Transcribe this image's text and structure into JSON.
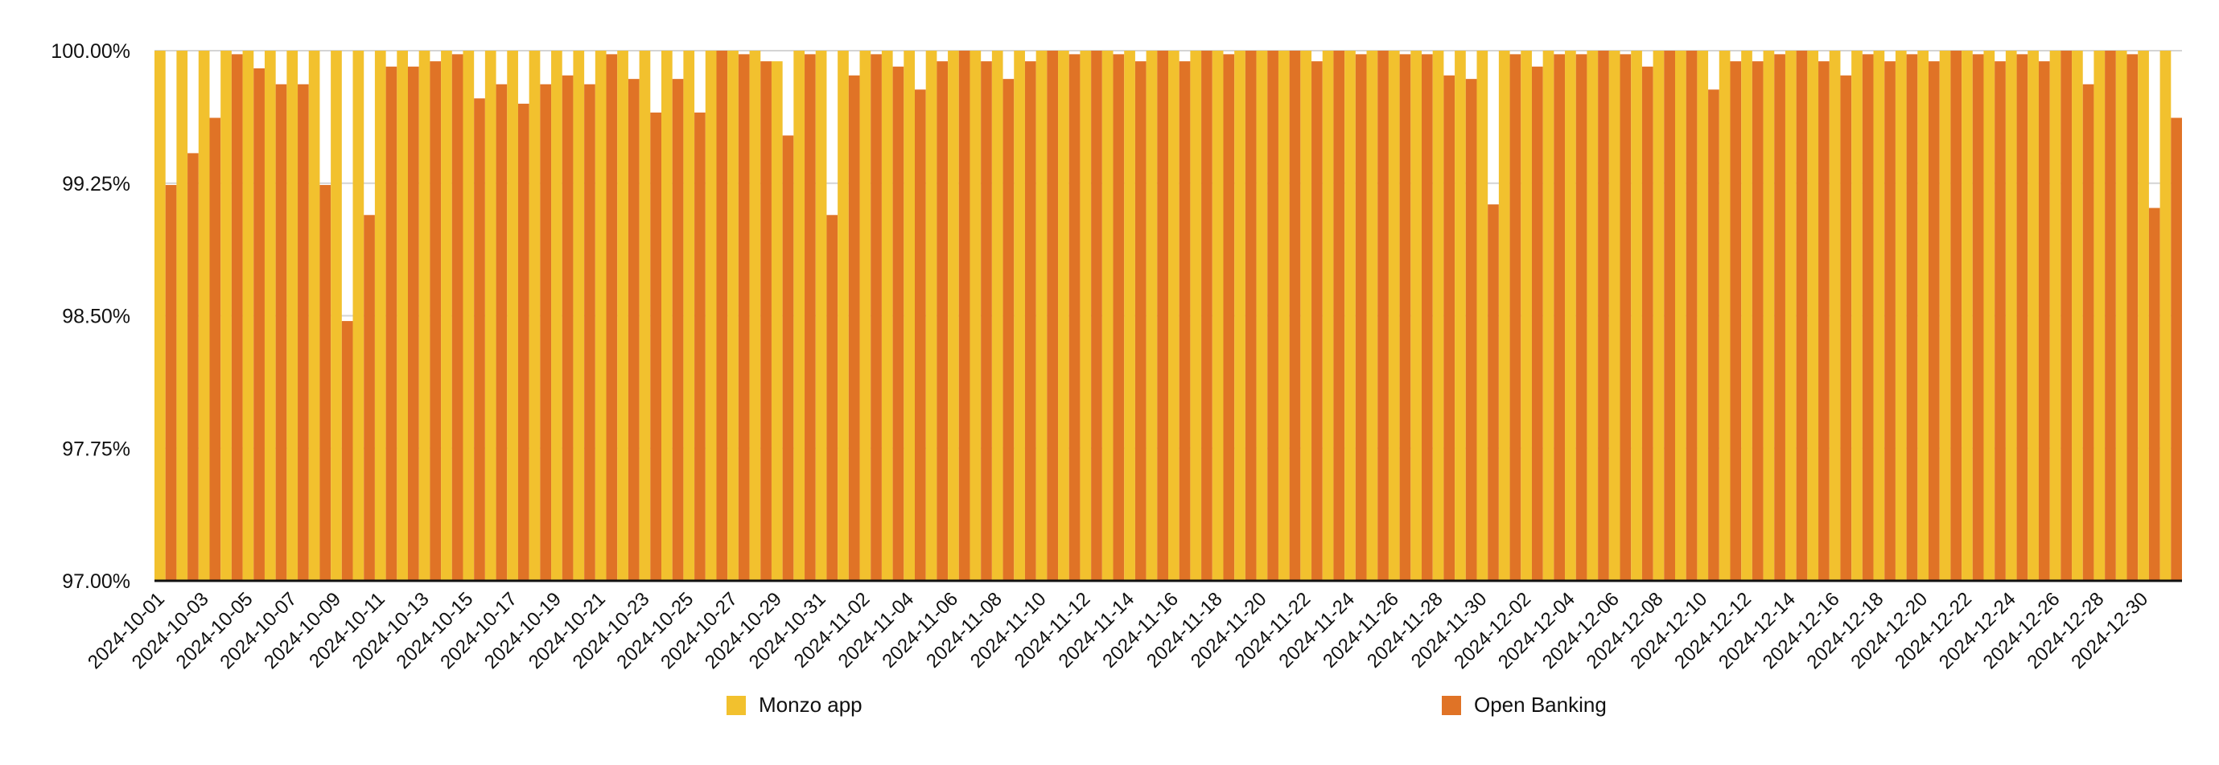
{
  "chart_data": {
    "type": "bar",
    "title": "",
    "xlabel": "",
    "ylabel": "",
    "ylim": [
      97.0,
      100.0
    ],
    "yticks": [
      {
        "value": 100.0,
        "label": "100.00%"
      },
      {
        "value": 99.25,
        "label": "99.25%"
      },
      {
        "value": 98.5,
        "label": "98.50%"
      },
      {
        "value": 97.75,
        "label": "97.75%"
      },
      {
        "value": 97.0,
        "label": "97.00%"
      }
    ],
    "grid": true,
    "legend_position": "bottom",
    "categories": [
      "2024-10-01",
      "2024-10-02",
      "2024-10-03",
      "2024-10-04",
      "2024-10-05",
      "2024-10-06",
      "2024-10-07",
      "2024-10-08",
      "2024-10-09",
      "2024-10-10",
      "2024-10-11",
      "2024-10-12",
      "2024-10-13",
      "2024-10-14",
      "2024-10-15",
      "2024-10-16",
      "2024-10-17",
      "2024-10-18",
      "2024-10-19",
      "2024-10-20",
      "2024-10-21",
      "2024-10-22",
      "2024-10-23",
      "2024-10-24",
      "2024-10-25",
      "2024-10-26",
      "2024-10-27",
      "2024-10-28",
      "2024-10-29",
      "2024-10-30",
      "2024-10-31",
      "2024-11-01",
      "2024-11-02",
      "2024-11-03",
      "2024-11-04",
      "2024-11-05",
      "2024-11-06",
      "2024-11-07",
      "2024-11-08",
      "2024-11-09",
      "2024-11-10",
      "2024-11-11",
      "2024-11-12",
      "2024-11-13",
      "2024-11-14",
      "2024-11-15",
      "2024-11-16",
      "2024-11-17",
      "2024-11-18",
      "2024-11-19",
      "2024-11-20",
      "2024-11-21",
      "2024-11-22",
      "2024-11-23",
      "2024-11-24",
      "2024-11-25",
      "2024-11-26",
      "2024-11-27",
      "2024-11-28",
      "2024-11-29",
      "2024-11-30",
      "2024-12-01",
      "2024-12-02",
      "2024-12-03",
      "2024-12-04",
      "2024-12-05",
      "2024-12-06",
      "2024-12-07",
      "2024-12-08",
      "2024-12-09",
      "2024-12-10",
      "2024-12-11",
      "2024-12-12",
      "2024-12-13",
      "2024-12-14",
      "2024-12-15",
      "2024-12-16",
      "2024-12-17",
      "2024-12-18",
      "2024-12-19",
      "2024-12-20",
      "2024-12-21",
      "2024-12-22",
      "2024-12-23",
      "2024-12-24",
      "2024-12-25",
      "2024-12-26",
      "2024-12-27",
      "2024-12-28",
      "2024-12-29",
      "2024-12-30",
      "2024-12-31"
    ],
    "xtick_labels": [
      "2024-10-01",
      "2024-10-03",
      "2024-10-05",
      "2024-10-07",
      "2024-10-09",
      "2024-10-11",
      "2024-10-13",
      "2024-10-15",
      "2024-10-17",
      "2024-10-19",
      "2024-10-21",
      "2024-10-23",
      "2024-10-25",
      "2024-10-27",
      "2024-10-29",
      "2024-10-31",
      "2024-11-02",
      "2024-11-04",
      "2024-11-06",
      "2024-11-08",
      "2024-11-10",
      "2024-11-12",
      "2024-11-14",
      "2024-11-16",
      "2024-11-18",
      "2024-11-20",
      "2024-11-22",
      "2024-11-24",
      "2024-11-26",
      "2024-11-28",
      "2024-11-30",
      "2024-12-02",
      "2024-12-04",
      "2024-12-06",
      "2024-12-08",
      "2024-12-10",
      "2024-12-12",
      "2024-12-14",
      "2024-12-16",
      "2024-12-18",
      "2024-12-20",
      "2024-12-22",
      "2024-12-24",
      "2024-12-26",
      "2024-12-28",
      "2024-12-30"
    ],
    "series": [
      {
        "name": "Monzo app",
        "color": "#F2C12E",
        "values": [
          100,
          100,
          100,
          100,
          100,
          100,
          100,
          100,
          100,
          100,
          100,
          100,
          100,
          100,
          100,
          100,
          100,
          100,
          100,
          100,
          100,
          100,
          100,
          100,
          100,
          100,
          100,
          100,
          99.94,
          100,
          100,
          100,
          100,
          100,
          100,
          100,
          100,
          100,
          100,
          100,
          100,
          100,
          100,
          100,
          100,
          100,
          100,
          100,
          100,
          100,
          100,
          100,
          100,
          100,
          100,
          100,
          100,
          100,
          100,
          100,
          100,
          100,
          100,
          100,
          100,
          100,
          100,
          100,
          100,
          100,
          100,
          100,
          100,
          100,
          100,
          100,
          100,
          100,
          100,
          100,
          100,
          100,
          100,
          100,
          100,
          100,
          100,
          100,
          100,
          100,
          100,
          100
        ]
      },
      {
        "name": "Open Banking",
        "color": "#E07326",
        "values": [
          99.24,
          99.42,
          99.62,
          99.98,
          99.9,
          99.81,
          99.81,
          99.24,
          98.47,
          99.07,
          99.91,
          99.91,
          99.94,
          99.98,
          99.73,
          99.81,
          99.7,
          99.81,
          99.86,
          99.81,
          99.98,
          99.84,
          99.65,
          99.84,
          99.65,
          100,
          99.98,
          99.94,
          99.52,
          99.98,
          99.07,
          99.86,
          99.98,
          99.91,
          99.78,
          99.94,
          100,
          99.94,
          99.84,
          99.94,
          100,
          99.98,
          100,
          99.98,
          99.94,
          100,
          99.94,
          100,
          99.98,
          100,
          100,
          100,
          99.94,
          100,
          99.98,
          100,
          99.98,
          99.98,
          99.86,
          99.84,
          99.13,
          99.98,
          99.91,
          99.98,
          99.98,
          100,
          99.98,
          99.91,
          100,
          100,
          99.78,
          99.94,
          99.94,
          99.98,
          100,
          99.94,
          99.86,
          99.98,
          99.94,
          99.98,
          99.94,
          100,
          99.98,
          99.94,
          99.98,
          99.94,
          100,
          99.81,
          100,
          99.98,
          99.11,
          99.62
        ]
      }
    ]
  }
}
